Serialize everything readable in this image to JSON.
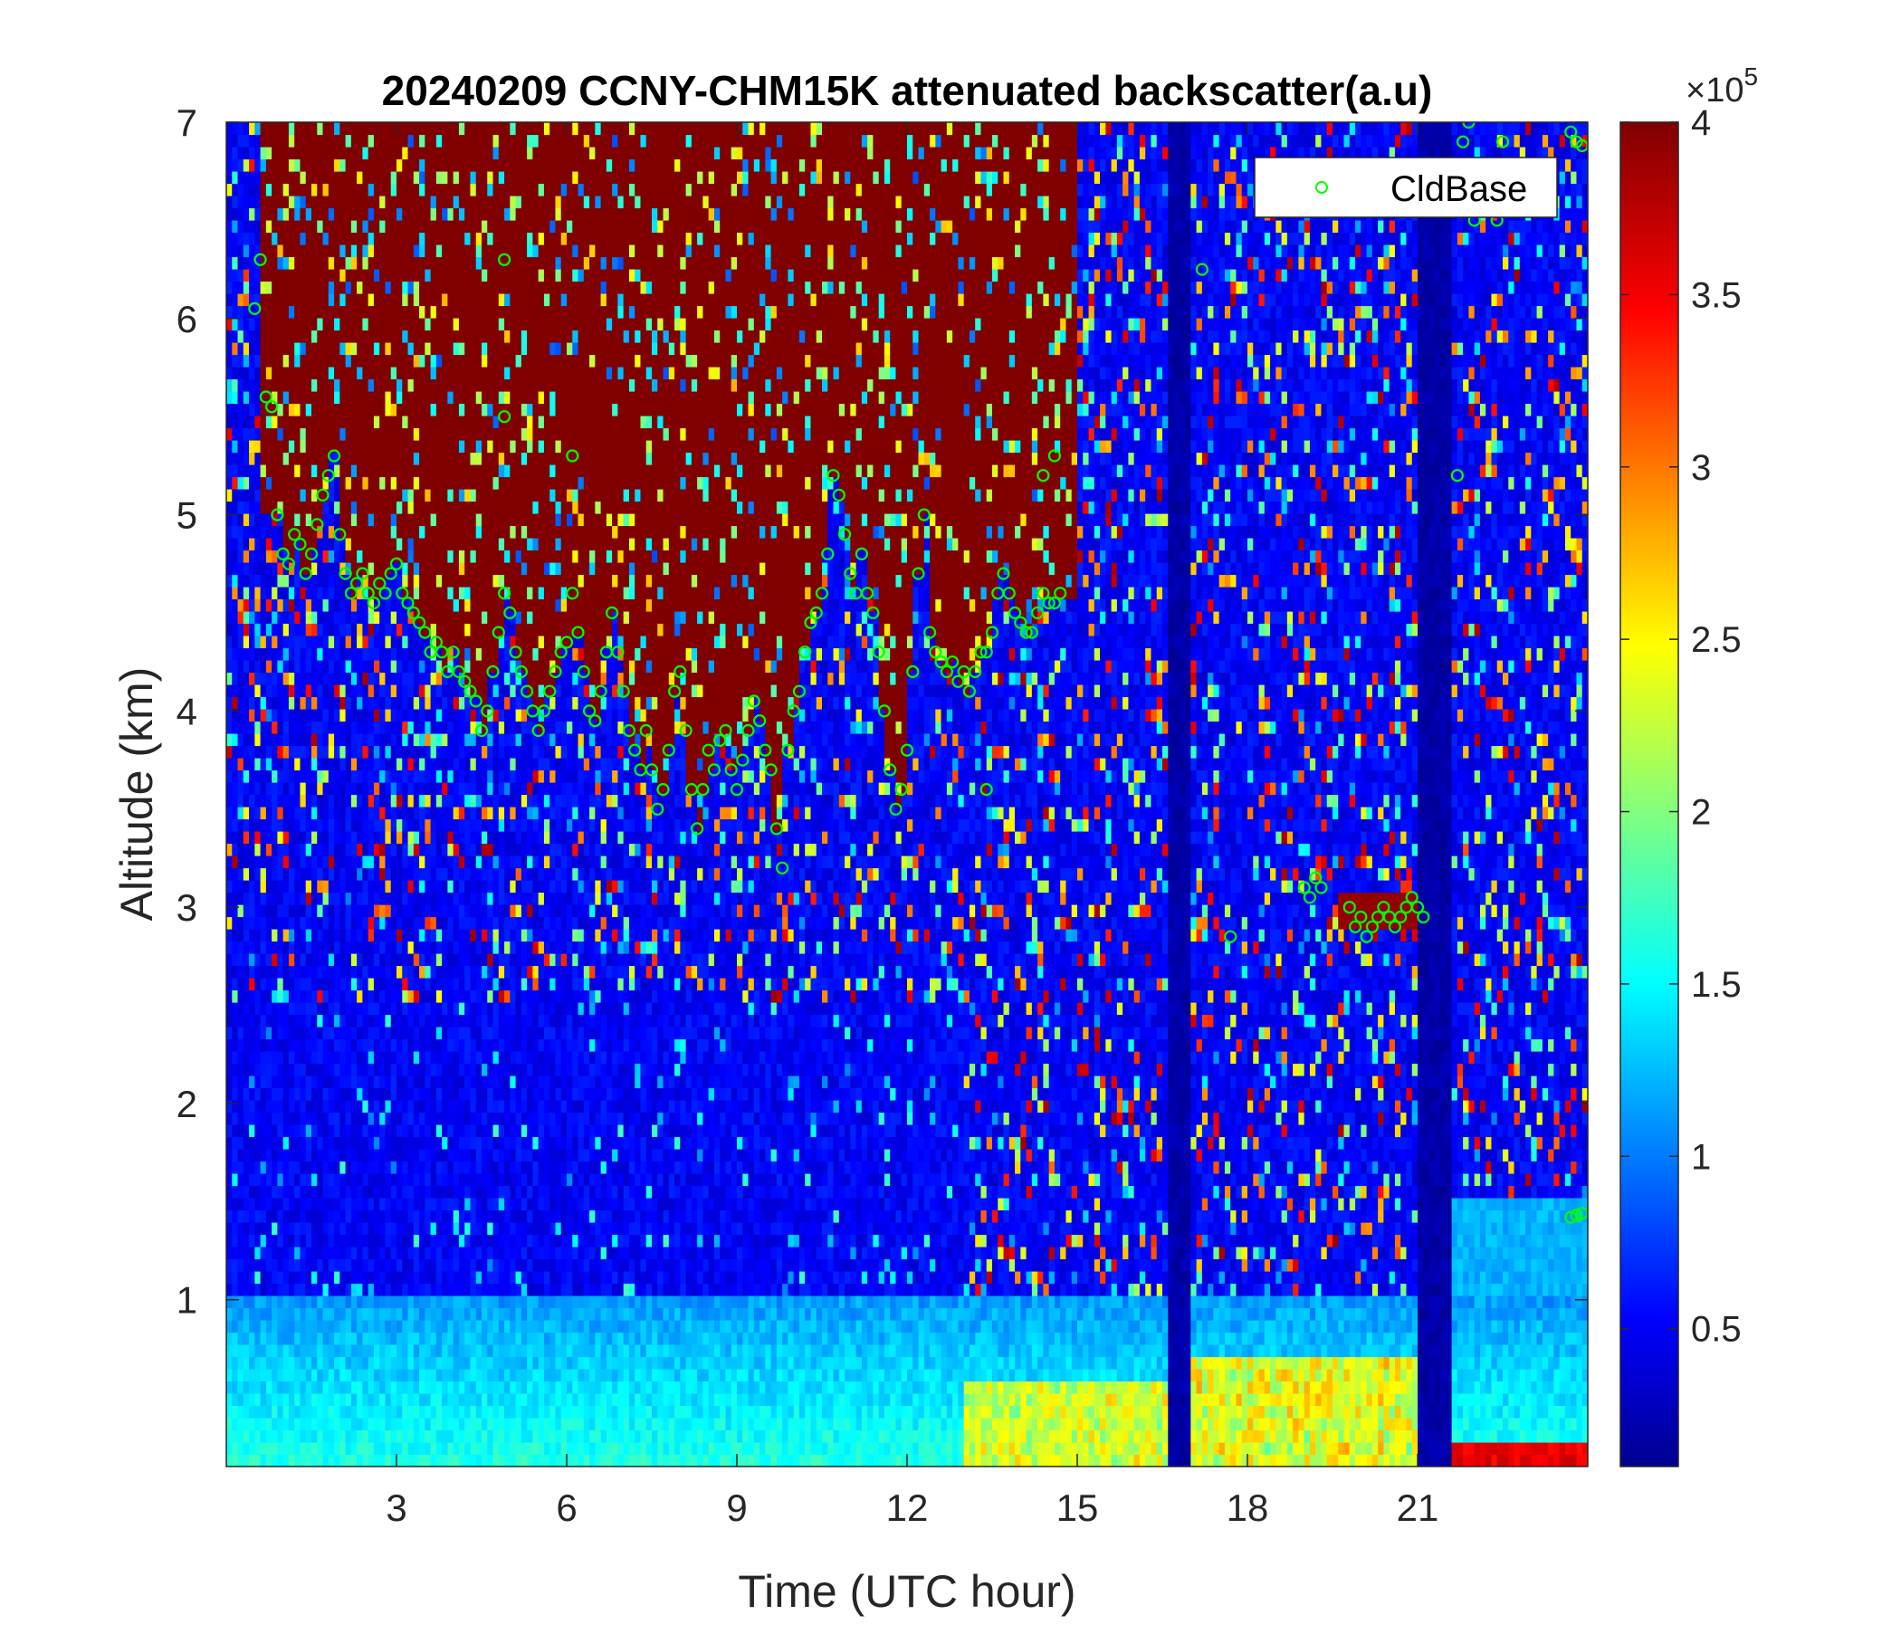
{
  "chart_data": {
    "type": "heatmap",
    "title": "20240209 CCNY-CHM15K attenuated backscatter(a.u)",
    "xlabel": "Time (UTC hour)",
    "ylabel": "Altitude (km)",
    "xlim": [
      0,
      24
    ],
    "ylim": [
      0.15,
      7
    ],
    "xticks": [
      3,
      6,
      9,
      12,
      15,
      18,
      21
    ],
    "yticks": [
      1,
      2,
      3,
      4,
      5,
      6,
      7
    ],
    "colorbar": {
      "min": 0.1,
      "max": 4,
      "ticks": [
        0.5,
        1,
        1.5,
        2,
        2.5,
        3,
        3.5,
        4
      ],
      "exponent_label": "×10",
      "exponent": "5",
      "colormap": "jet"
    },
    "legend": {
      "position": "top-right",
      "entries": [
        "CldBase"
      ]
    },
    "colors": {
      "cloud_base_marker": "#00ff00",
      "cloud_fill": "#800000",
      "background_low": "#0a1a8c"
    },
    "series": [
      {
        "name": "CldBase",
        "marker": "circle",
        "points": [
          [
            0.5,
            6.05
          ],
          [
            0.6,
            6.3
          ],
          [
            0.7,
            5.6
          ],
          [
            0.8,
            5.55
          ],
          [
            0.9,
            5.0
          ],
          [
            1.0,
            4.8
          ],
          [
            1.1,
            4.75
          ],
          [
            1.2,
            4.9
          ],
          [
            1.3,
            4.85
          ],
          [
            1.4,
            4.7
          ],
          [
            1.5,
            4.8
          ],
          [
            1.6,
            4.95
          ],
          [
            1.7,
            5.1
          ],
          [
            1.8,
            5.2
          ],
          [
            1.9,
            5.3
          ],
          [
            2.0,
            4.9
          ],
          [
            2.1,
            4.7
          ],
          [
            2.2,
            4.6
          ],
          [
            2.3,
            4.65
          ],
          [
            2.4,
            4.7
          ],
          [
            2.5,
            4.6
          ],
          [
            2.6,
            4.55
          ],
          [
            2.7,
            4.65
          ],
          [
            2.8,
            4.6
          ],
          [
            2.9,
            4.7
          ],
          [
            3.0,
            4.75
          ],
          [
            3.1,
            4.6
          ],
          [
            3.2,
            4.55
          ],
          [
            3.3,
            4.5
          ],
          [
            3.4,
            4.45
          ],
          [
            3.5,
            4.4
          ],
          [
            3.6,
            4.3
          ],
          [
            3.7,
            4.35
          ],
          [
            3.8,
            4.3
          ],
          [
            3.9,
            4.2
          ],
          [
            4.0,
            4.3
          ],
          [
            4.1,
            4.2
          ],
          [
            4.2,
            4.15
          ],
          [
            4.3,
            4.1
          ],
          [
            4.4,
            4.05
          ],
          [
            4.5,
            3.9
          ],
          [
            4.6,
            4.0
          ],
          [
            4.7,
            4.2
          ],
          [
            4.8,
            4.4
          ],
          [
            4.9,
            4.6
          ],
          [
            5.0,
            4.5
          ],
          [
            5.1,
            4.3
          ],
          [
            5.2,
            4.2
          ],
          [
            5.3,
            4.1
          ],
          [
            5.4,
            4.0
          ],
          [
            5.5,
            3.9
          ],
          [
            5.6,
            4.0
          ],
          [
            5.7,
            4.1
          ],
          [
            5.8,
            4.2
          ],
          [
            5.9,
            4.3
          ],
          [
            6.0,
            4.35
          ],
          [
            6.1,
            4.6
          ],
          [
            6.2,
            4.4
          ],
          [
            6.3,
            4.2
          ],
          [
            6.4,
            4.0
          ],
          [
            6.5,
            3.95
          ],
          [
            6.6,
            4.1
          ],
          [
            6.7,
            4.3
          ],
          [
            6.8,
            4.5
          ],
          [
            6.9,
            4.3
          ],
          [
            7.0,
            4.1
          ],
          [
            7.1,
            3.9
          ],
          [
            7.2,
            3.8
          ],
          [
            7.3,
            3.7
          ],
          [
            7.4,
            3.9
          ],
          [
            7.5,
            3.7
          ],
          [
            7.6,
            3.5
          ],
          [
            7.7,
            3.6
          ],
          [
            7.8,
            3.8
          ],
          [
            7.9,
            4.1
          ],
          [
            8.0,
            4.2
          ],
          [
            8.1,
            3.9
          ],
          [
            8.2,
            3.6
          ],
          [
            8.3,
            3.4
          ],
          [
            8.4,
            3.6
          ],
          [
            8.5,
            3.8
          ],
          [
            8.6,
            3.7
          ],
          [
            8.7,
            3.85
          ],
          [
            8.8,
            3.9
          ],
          [
            8.9,
            3.7
          ],
          [
            9.0,
            3.6
          ],
          [
            9.1,
            3.75
          ],
          [
            9.2,
            3.9
          ],
          [
            9.3,
            4.05
          ],
          [
            9.4,
            3.95
          ],
          [
            9.5,
            3.8
          ],
          [
            9.6,
            3.7
          ],
          [
            9.7,
            3.4
          ],
          [
            9.8,
            3.2
          ],
          [
            9.9,
            3.8
          ],
          [
            10.0,
            4.0
          ],
          [
            10.1,
            4.1
          ],
          [
            10.2,
            4.3
          ],
          [
            10.3,
            4.45
          ],
          [
            10.4,
            4.5
          ],
          [
            10.5,
            4.6
          ],
          [
            10.6,
            4.8
          ],
          [
            10.7,
            5.2
          ],
          [
            10.8,
            5.1
          ],
          [
            10.9,
            4.9
          ],
          [
            11.0,
            4.7
          ],
          [
            11.1,
            4.6
          ],
          [
            11.2,
            4.8
          ],
          [
            11.3,
            4.6
          ],
          [
            11.4,
            4.5
          ],
          [
            11.5,
            4.3
          ],
          [
            11.6,
            4.0
          ],
          [
            11.7,
            3.7
          ],
          [
            11.8,
            3.5
          ],
          [
            11.9,
            3.6
          ],
          [
            12.0,
            3.8
          ],
          [
            12.1,
            4.2
          ],
          [
            12.2,
            4.7
          ],
          [
            12.3,
            5.0
          ],
          [
            12.4,
            4.4
          ],
          [
            12.5,
            4.3
          ],
          [
            12.6,
            4.25
          ],
          [
            12.7,
            4.2
          ],
          [
            12.8,
            4.25
          ],
          [
            12.9,
            4.15
          ],
          [
            13.0,
            4.2
          ],
          [
            13.1,
            4.1
          ],
          [
            13.2,
            4.2
          ],
          [
            13.3,
            4.3
          ],
          [
            13.4,
            4.3
          ],
          [
            13.5,
            4.4
          ],
          [
            13.6,
            4.6
          ],
          [
            13.7,
            4.7
          ],
          [
            13.8,
            4.6
          ],
          [
            13.9,
            4.5
          ],
          [
            14.0,
            4.45
          ],
          [
            14.1,
            4.4
          ],
          [
            14.2,
            4.4
          ],
          [
            14.3,
            4.5
          ],
          [
            14.4,
            4.6
          ],
          [
            14.5,
            4.55
          ],
          [
            14.6,
            4.55
          ],
          [
            14.7,
            4.6
          ],
          [
            13.4,
            3.6
          ],
          [
            14.4,
            5.2
          ],
          [
            14.6,
            5.3
          ],
          [
            4.9,
            5.5
          ],
          [
            4.9,
            6.3
          ],
          [
            6.1,
            5.3
          ],
          [
            17.2,
            6.25
          ],
          [
            17.7,
            2.85
          ],
          [
            19.0,
            3.1
          ],
          [
            19.1,
            3.05
          ],
          [
            19.2,
            3.15
          ],
          [
            19.3,
            3.1
          ],
          [
            19.8,
            3.0
          ],
          [
            19.9,
            2.9
          ],
          [
            20.0,
            2.95
          ],
          [
            20.1,
            2.85
          ],
          [
            20.2,
            2.9
          ],
          [
            20.3,
            2.95
          ],
          [
            20.4,
            3.0
          ],
          [
            20.5,
            2.95
          ],
          [
            20.6,
            2.9
          ],
          [
            20.7,
            2.95
          ],
          [
            20.8,
            3.0
          ],
          [
            20.9,
            3.05
          ],
          [
            21.0,
            3.0
          ],
          [
            21.1,
            2.95
          ],
          [
            21.7,
            5.2
          ],
          [
            21.8,
            6.9
          ],
          [
            21.9,
            7.0
          ],
          [
            22.0,
            6.5
          ],
          [
            22.4,
            6.5
          ],
          [
            22.5,
            6.9
          ],
          [
            23.7,
            6.95
          ],
          [
            23.8,
            6.9
          ],
          [
            23.9,
            6.88
          ],
          [
            23.7,
            1.42
          ],
          [
            23.8,
            1.43
          ],
          [
            23.9,
            1.44
          ]
        ]
      }
    ]
  }
}
